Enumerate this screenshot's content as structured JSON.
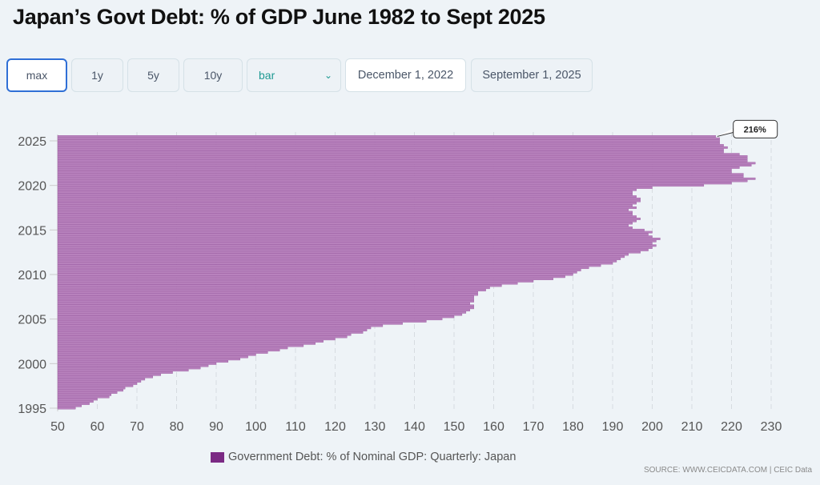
{
  "title": "Japan’s Govt Debt: % of GDP June 1982 to Sept 2025",
  "controls": {
    "ranges": [
      "max",
      "1y",
      "5y",
      "10y"
    ],
    "chart_type": "bar",
    "start_date": "December 1, 2022",
    "end_date": "September 1, 2025"
  },
  "legend": "Government Debt: % of Nominal GDP: Quarterly: Japan",
  "source": "SOURCE: WWW.CEICDATA.COM | CEIC Data",
  "tooltip": "216%",
  "colors": {
    "bar": "#b882bd",
    "bar_edge": "#9a58a0",
    "legend": "#7b2a84",
    "active": "#2f6fd6"
  },
  "chart_data": {
    "type": "bar",
    "orientation": "horizontal",
    "title": "Japan’s Govt Debt: % of GDP June 1982 to Sept 2025",
    "xlim": [
      50,
      230
    ],
    "xticks": [
      50,
      60,
      70,
      80,
      90,
      100,
      110,
      120,
      130,
      140,
      150,
      160,
      170,
      180,
      190,
      200,
      210,
      220,
      230
    ],
    "yticks": [
      "1995",
      "2000",
      "2005",
      "2010",
      "2015",
      "2020",
      "2025"
    ],
    "grid": "vertical dashed",
    "legend_position": "bottom",
    "start": "1995-Q1",
    "frequency": "quarterly",
    "values": [
      54.5,
      56,
      58,
      59,
      60,
      63,
      63.5,
      65,
      66.5,
      67,
      69,
      70,
      71,
      72,
      74,
      76,
      79,
      83,
      86,
      88,
      90,
      93,
      96,
      98,
      100,
      103,
      106,
      108,
      112,
      115,
      117,
      120,
      123,
      124,
      127,
      128,
      129,
      132,
      137,
      143,
      147,
      150,
      152,
      153,
      154,
      155,
      155,
      154,
      155,
      155,
      155,
      156,
      156,
      158,
      159,
      162,
      166,
      170,
      175,
      178,
      180,
      181,
      182,
      184,
      187,
      190,
      191,
      192,
      193,
      194,
      197,
      199,
      200,
      201,
      200,
      201,
      202,
      200,
      199,
      200,
      198,
      195,
      194,
      195,
      196,
      197,
      196,
      195,
      195,
      194,
      196,
      195,
      196,
      197,
      197,
      196,
      195,
      195,
      196,
      200,
      213,
      220,
      224,
      226,
      223,
      223,
      220,
      220,
      222,
      225,
      226,
      224,
      224,
      224,
      222,
      218,
      218,
      219,
      218,
      217,
      217,
      217,
      216
    ]
  }
}
